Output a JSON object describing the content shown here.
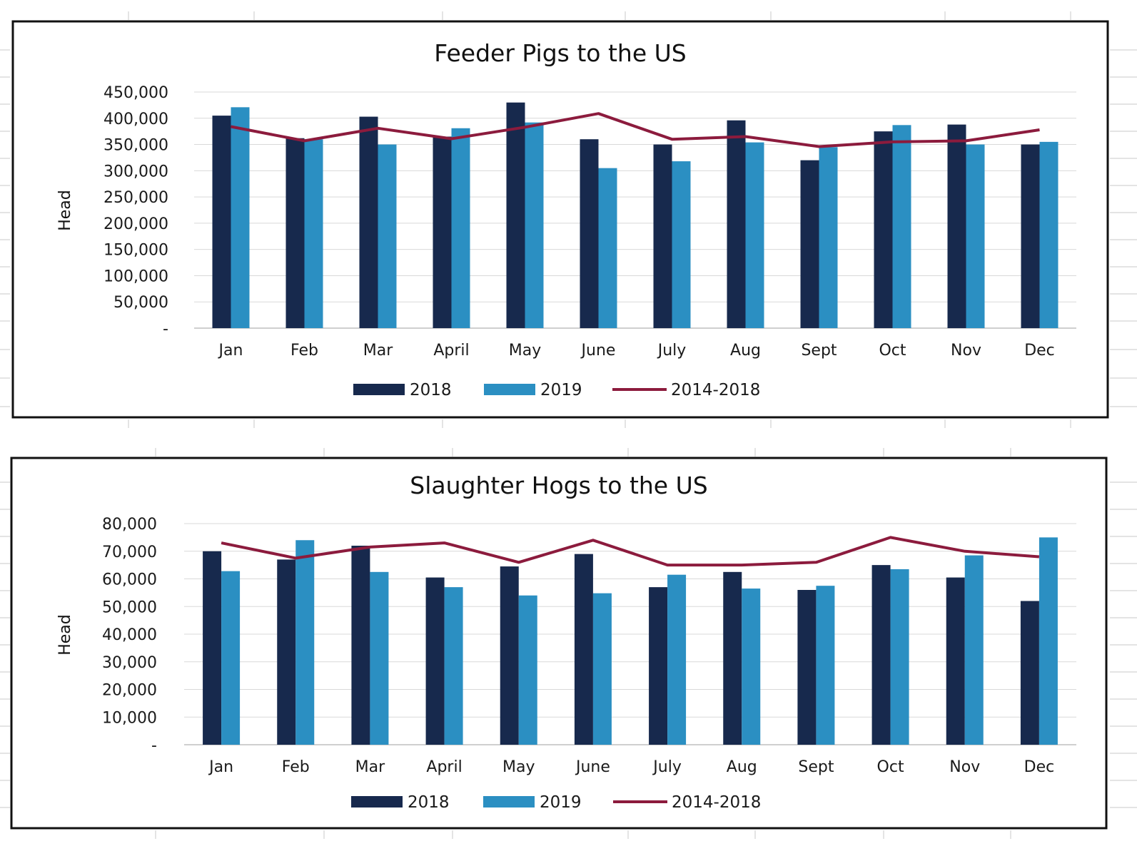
{
  "colors": {
    "series_2018": "#17294d",
    "series_2019": "#2b8fc2",
    "series_avg": "#8c1b3d"
  },
  "chart_data": [
    {
      "type": "bar",
      "title": "Feeder Pigs to the US",
      "ylabel": "Head",
      "ylim": [
        0,
        450000
      ],
      "yticks": [
        0,
        50000,
        100000,
        150000,
        200000,
        250000,
        300000,
        350000,
        400000,
        450000
      ],
      "ytick_labels": [
        "-",
        "50,000",
        "100,000",
        "150,000",
        "200,000",
        "250,000",
        "300,000",
        "350,000",
        "400,000",
        "450,000"
      ],
      "grid": true,
      "legend_position": "bottom",
      "categories": [
        "Jan",
        "Feb",
        "Mar",
        "April",
        "May",
        "June",
        "July",
        "Aug",
        "Sept",
        "Oct",
        "Nov",
        "Dec"
      ],
      "series": [
        {
          "name": "2018",
          "type": "bar",
          "values": [
            405000,
            362000,
            403000,
            365000,
            430000,
            360000,
            350000,
            396000,
            320000,
            375000,
            388000,
            350000
          ]
        },
        {
          "name": "2019",
          "type": "bar",
          "values": [
            421000,
            360000,
            350000,
            381000,
            392000,
            305000,
            318000,
            354000,
            345000,
            387000,
            350000,
            355000
          ]
        },
        {
          "name": "2014-2018",
          "type": "line",
          "values": [
            384000,
            357000,
            381000,
            361000,
            383000,
            409000,
            360000,
            365000,
            346000,
            355000,
            357000,
            378000
          ]
        }
      ]
    },
    {
      "type": "bar",
      "title": "Slaughter Hogs to the US",
      "ylabel": "Head",
      "ylim": [
        0,
        80000
      ],
      "yticks": [
        0,
        10000,
        20000,
        30000,
        40000,
        50000,
        60000,
        70000,
        80000
      ],
      "ytick_labels": [
        "-",
        "10,000",
        "20,000",
        "30,000",
        "40,000",
        "50,000",
        "60,000",
        "70,000",
        "80,000"
      ],
      "grid": true,
      "legend_position": "bottom",
      "categories": [
        "Jan",
        "Feb",
        "Mar",
        "April",
        "May",
        "June",
        "July",
        "Aug",
        "Sept",
        "Oct",
        "Nov",
        "Dec"
      ],
      "series": [
        {
          "name": "2018",
          "type": "bar",
          "values": [
            70000,
            67000,
            72000,
            60500,
            64500,
            69000,
            57000,
            62500,
            56000,
            65000,
            60500,
            52000
          ]
        },
        {
          "name": "2019",
          "type": "bar",
          "values": [
            62800,
            74000,
            62500,
            57000,
            54000,
            54800,
            61500,
            56500,
            57500,
            63500,
            68500,
            75000
          ]
        },
        {
          "name": "2014-2018",
          "type": "line",
          "values": [
            73000,
            67500,
            71500,
            73000,
            66000,
            74000,
            65000,
            65000,
            66000,
            75000,
            70000,
            68000
          ]
        }
      ]
    }
  ]
}
